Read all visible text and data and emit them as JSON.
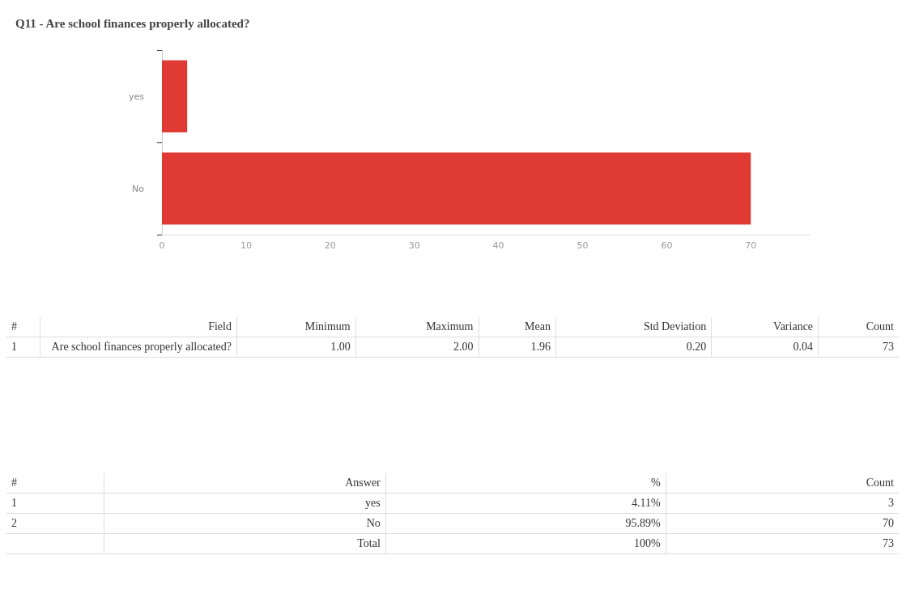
{
  "chart_data": [
    {
      "type": "bar",
      "title": "Q11 - Are school finances properly allocated?",
      "orientation": "horizontal",
      "categories": [
        "yes",
        "No"
      ],
      "values": [
        3,
        70
      ],
      "color": "#e03a35",
      "xlim": [
        0,
        77
      ],
      "xticks": [
        0,
        10,
        20,
        30,
        40,
        50,
        60,
        70
      ],
      "grid": false
    },
    {
      "type": "other",
      "categories": [
        "#",
        "Field",
        "Minimum",
        "Maximum",
        "Mean",
        "Std Deviation",
        "Variance",
        "Count"
      ],
      "cell_labels": [
        [
          "1",
          "Are school finances properly allocated?",
          "1.00",
          "2.00",
          "1.96",
          "0.20",
          "0.04",
          "73"
        ]
      ]
    },
    {
      "type": "other",
      "categories": [
        "#",
        "Answer",
        "%",
        "Count"
      ],
      "cell_labels": [
        [
          "1",
          "yes",
          "4.11%",
          "3"
        ],
        [
          "2",
          "No",
          "95.89%",
          "70"
        ],
        [
          null,
          "Total",
          "100%",
          "73"
        ]
      ]
    }
  ]
}
